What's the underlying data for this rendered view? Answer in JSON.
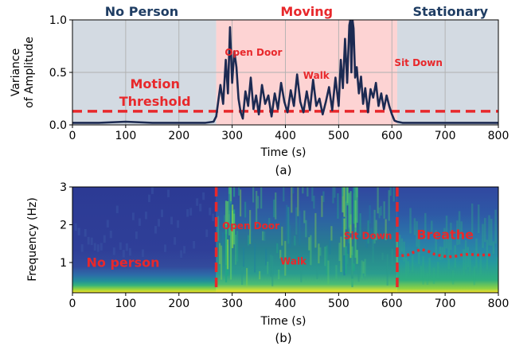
{
  "chart_data": [
    {
      "type": "line",
      "caption": "(a)",
      "xlabel": "Time (s)",
      "ylabel_lines": [
        "Variance",
        "of Amplitude"
      ],
      "xlim": [
        0,
        800
      ],
      "ylim": [
        0,
        1.0
      ],
      "x_ticks": [
        0,
        100,
        200,
        300,
        400,
        500,
        600,
        700,
        800
      ],
      "y_ticks": [
        {
          "value": 0.0,
          "label": "0.0"
        },
        {
          "value": 0.5,
          "label": "0.5"
        },
        {
          "value": 1.0,
          "label": "1.0"
        }
      ],
      "grid": true,
      "regions": [
        {
          "label": "No Person",
          "x_start": 0,
          "x_end": 270,
          "color": "#d3dae2",
          "label_color": "#1f3d63",
          "label_x": 130
        },
        {
          "label": "Moving",
          "x_start": 270,
          "x_end": 610,
          "color": "#fdd3d3",
          "label_color": "#e8282b",
          "label_x": 440
        },
        {
          "label": "Stationary",
          "x_start": 610,
          "x_end": 800,
          "color": "#d3dae2",
          "label_color": "#1f3d63",
          "label_x": 710
        }
      ],
      "threshold": {
        "value": 0.13,
        "label_lines": [
          "Motion",
          "Threshold"
        ],
        "color": "#e8282b",
        "label_x": 155
      },
      "annotations": [
        {
          "text": "Open Door",
          "x": 340,
          "y": 0.66
        },
        {
          "text": "Walk",
          "x": 458,
          "y": 0.44
        },
        {
          "text": "Sit Down",
          "x": 650,
          "y": 0.56
        }
      ],
      "series": [
        {
          "color": "#1c2a52",
          "x": [
            0,
            50,
            100,
            150,
            200,
            250,
            265,
            270,
            278,
            283,
            288,
            292,
            296,
            300,
            304,
            308,
            312,
            316,
            320,
            325,
            330,
            335,
            340,
            345,
            350,
            356,
            362,
            368,
            374,
            380,
            386,
            392,
            398,
            404,
            410,
            416,
            422,
            428,
            434,
            440,
            446,
            452,
            458,
            464,
            470,
            476,
            482,
            488,
            494,
            500,
            504,
            508,
            512,
            516,
            520,
            522,
            524,
            526,
            528,
            531,
            534,
            538,
            542,
            546,
            550,
            555,
            560,
            565,
            570,
            575,
            580,
            585,
            590,
            595,
            600,
            605,
            610,
            620,
            650,
            700,
            750,
            800
          ],
          "values": [
            0.02,
            0.02,
            0.03,
            0.02,
            0.02,
            0.02,
            0.03,
            0.08,
            0.38,
            0.2,
            0.62,
            0.3,
            0.93,
            0.4,
            0.7,
            0.55,
            0.25,
            0.12,
            0.06,
            0.32,
            0.18,
            0.45,
            0.15,
            0.28,
            0.1,
            0.38,
            0.2,
            0.28,
            0.08,
            0.3,
            0.15,
            0.4,
            0.22,
            0.12,
            0.33,
            0.18,
            0.48,
            0.22,
            0.12,
            0.32,
            0.14,
            0.43,
            0.18,
            0.25,
            0.1,
            0.22,
            0.36,
            0.14,
            0.45,
            0.18,
            0.62,
            0.35,
            0.82,
            0.4,
            0.95,
            1.0,
            0.5,
            1.0,
            0.92,
            0.45,
            0.55,
            0.3,
            0.46,
            0.2,
            0.35,
            0.12,
            0.34,
            0.26,
            0.4,
            0.18,
            0.3,
            0.15,
            0.28,
            0.18,
            0.1,
            0.04,
            0.03,
            0.02,
            0.02,
            0.02,
            0.02,
            0.02
          ]
        }
      ]
    },
    {
      "type": "heatmap",
      "caption": "(b)",
      "xlabel": "Time (s)",
      "ylabel": "Frequency (Hz)",
      "xlim": [
        0,
        800
      ],
      "ylim": [
        0.2,
        3.0
      ],
      "x_ticks": [
        0,
        100,
        200,
        300,
        400,
        500,
        600,
        700,
        800
      ],
      "y_ticks": [
        1,
        2,
        3
      ],
      "colormap": [
        "#440154",
        "#3b528b",
        "#21908c",
        "#5dc963",
        "#fde725"
      ],
      "base_color": "#2e3f9a",
      "dividers": [
        270,
        610
      ],
      "divider_color": "#e8282b",
      "annotations": [
        {
          "text": "No person",
          "x": 95,
          "y": 0.88
        },
        {
          "text": "Open Door",
          "x": 335,
          "y": 1.88
        },
        {
          "text": "Walk",
          "x": 415,
          "y": 0.95
        },
        {
          "text": "Sit Down",
          "x": 555,
          "y": 1.62
        },
        {
          "text": "Breathe",
          "x": 700,
          "y": 1.62
        }
      ],
      "breathe_trace": {
        "x": [
          618,
          630,
          642,
          655,
          668,
          680,
          692,
          705,
          718,
          730,
          745,
          760,
          775,
          790
        ],
        "values": [
          1.18,
          1.2,
          1.28,
          1.35,
          1.3,
          1.22,
          1.18,
          1.15,
          1.16,
          1.2,
          1.22,
          1.2,
          1.2,
          1.2
        ]
      }
    }
  ]
}
